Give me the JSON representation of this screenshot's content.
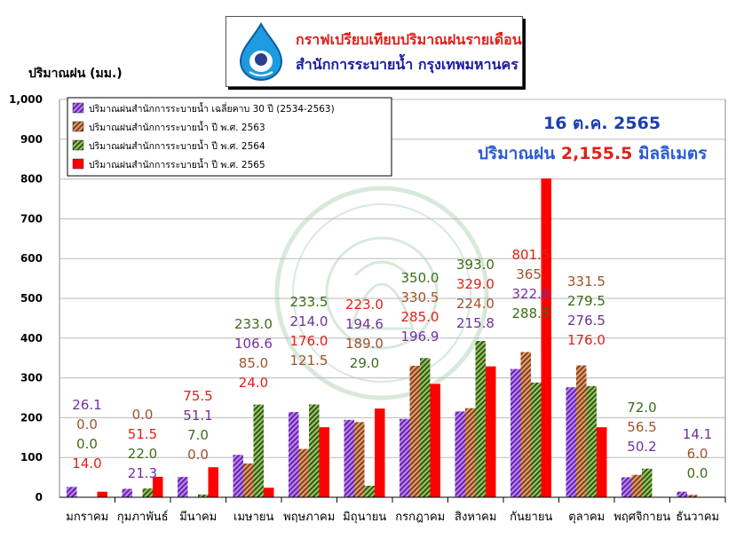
{
  "header": {
    "title": "กราฟเปรียบเทียบปริมาณฝนรายเดือน",
    "agency": "สำนักการระบายน้ำ กรุงเทพมหานคร"
  },
  "annotations": {
    "date": "16 ต.ค. 2565",
    "total_label": "ปริมาณฝน",
    "total_value": "2,155.5",
    "total_unit": "มิลลิเมตร"
  },
  "chart_data": {
    "type": "bar",
    "ylabel": "ปริมาณฝน (มม.)",
    "ylim": [
      0,
      1000
    ],
    "yticks": [
      "0",
      "100",
      "200",
      "300",
      "400",
      "500",
      "600",
      "700",
      "800",
      "900",
      "1,000"
    ],
    "grid": true,
    "legend_position": "top-left",
    "categories": [
      "มกราคม",
      "กุมภาพันธ์",
      "มีนาคม",
      "เมษายน",
      "พฤษภาคม",
      "มิถุนายน",
      "กรกฎาคม",
      "สิงหาคม",
      "กันยายน",
      "ตุลาคม",
      "พฤศจิกายน",
      "ธันวาคม"
    ],
    "series": [
      {
        "name": "ปริมาณฝนสำนักการระบายน้ำ เฉลี่ยคาบ 30 ปี (2534-2563)",
        "color": "#8a3fd1",
        "label_color": "#7030a0",
        "pattern": "hatch",
        "values": [
          26.1,
          21.3,
          51.1,
          106.6,
          214.0,
          194.6,
          196.9,
          215.8,
          322.6,
          276.5,
          50.2,
          14.1
        ],
        "labels": [
          "26.1",
          "21.3",
          "51.1",
          "106.6",
          "214.0",
          "194.6",
          "196.9",
          "215.8",
          "322.6",
          "276.5",
          "50.2",
          "14.1"
        ]
      },
      {
        "name": "ปริมาณฝนสำนักการระบายน้ำ ปี พ.ศ. 2563",
        "color": "#a0522d",
        "label_color": "#a0522d",
        "pattern": "hatch",
        "values": [
          0.0,
          0.0,
          0.0,
          85.0,
          121.5,
          189.0,
          330.5,
          224.0,
          365.0,
          331.5,
          56.5,
          6.0
        ],
        "labels": [
          "0.0",
          "0.0",
          "0.0",
          "85.0",
          "121.5",
          "189.0",
          "330.5",
          "224.0",
          "365.",
          "331.5",
          "56.5",
          "6.0"
        ]
      },
      {
        "name": "ปริมาณฝนสำนักการระบายน้ำ ปี พ.ศ. 2564",
        "color": "#4b7a1f",
        "label_color": "#3e6b1a",
        "pattern": "hatch",
        "values": [
          0.0,
          22.0,
          7.0,
          233.0,
          233.5,
          29.0,
          350.0,
          393.0,
          288.5,
          279.5,
          72.0,
          0.0
        ],
        "labels": [
          "0.0",
          "22.0",
          "7.0",
          "233.0",
          "233.5",
          "29.0",
          "350.0",
          "393.0",
          "288.5",
          "279.5",
          "72.0",
          "0.0"
        ]
      },
      {
        "name": "ปริมาณฝนสำนักการระบายน้ำ ปี พ.ศ. 2565",
        "color": "#ff0000",
        "label_color": "#e0201a",
        "pattern": "solid",
        "values": [
          14.0,
          51.5,
          75.5,
          24.0,
          176.0,
          223.0,
          285.0,
          329.0,
          801.5,
          176.0,
          null,
          null
        ],
        "labels": [
          "14.0",
          "51.5",
          "75.5",
          "24.0",
          "176.0",
          "223.0",
          "285.0",
          "329.0",
          "801.5",
          "176.0",
          "",
          ""
        ]
      }
    ]
  }
}
